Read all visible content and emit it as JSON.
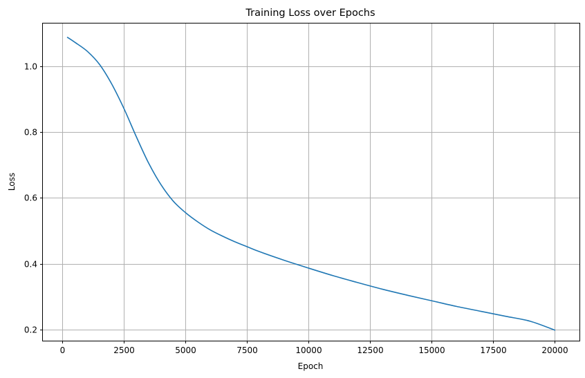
{
  "chart_data": {
    "type": "line",
    "title": "Training Loss over Epochs",
    "xlabel": "Epoch",
    "ylabel": "Loss",
    "xlim": [
      -800,
      21000
    ],
    "ylim": [
      0.167,
      1.129
    ],
    "xticks": [
      0,
      2500,
      5000,
      7500,
      10000,
      12500,
      15000,
      17500,
      20000
    ],
    "xtick_labels": [
      "0",
      "2500",
      "5000",
      "7500",
      "10000",
      "12500",
      "15000",
      "17500",
      "20000"
    ],
    "yticks": [
      0.2,
      0.4,
      0.6,
      0.8,
      1.0
    ],
    "ytick_labels": [
      "0.2",
      "0.4",
      "0.6",
      "0.8",
      "1.0"
    ],
    "grid": true,
    "line_color": "#1f77b4",
    "series": [
      {
        "x": [
          200,
          500,
          1000,
          1500,
          2000,
          2500,
          3000,
          3500,
          4000,
          4500,
          5000,
          5500,
          6000,
          6500,
          7000,
          7500,
          8000,
          9000,
          10000,
          11000,
          12000,
          13000,
          14000,
          15000,
          16000,
          17000,
          18000,
          19000,
          20000
        ],
        "y": [
          1.087,
          1.072,
          1.045,
          1.005,
          0.945,
          0.87,
          0.785,
          0.705,
          0.64,
          0.59,
          0.555,
          0.527,
          0.503,
          0.484,
          0.467,
          0.452,
          0.437,
          0.411,
          0.387,
          0.364,
          0.343,
          0.323,
          0.305,
          0.288,
          0.271,
          0.256,
          0.241,
          0.226,
          0.199
        ]
      }
    ]
  }
}
